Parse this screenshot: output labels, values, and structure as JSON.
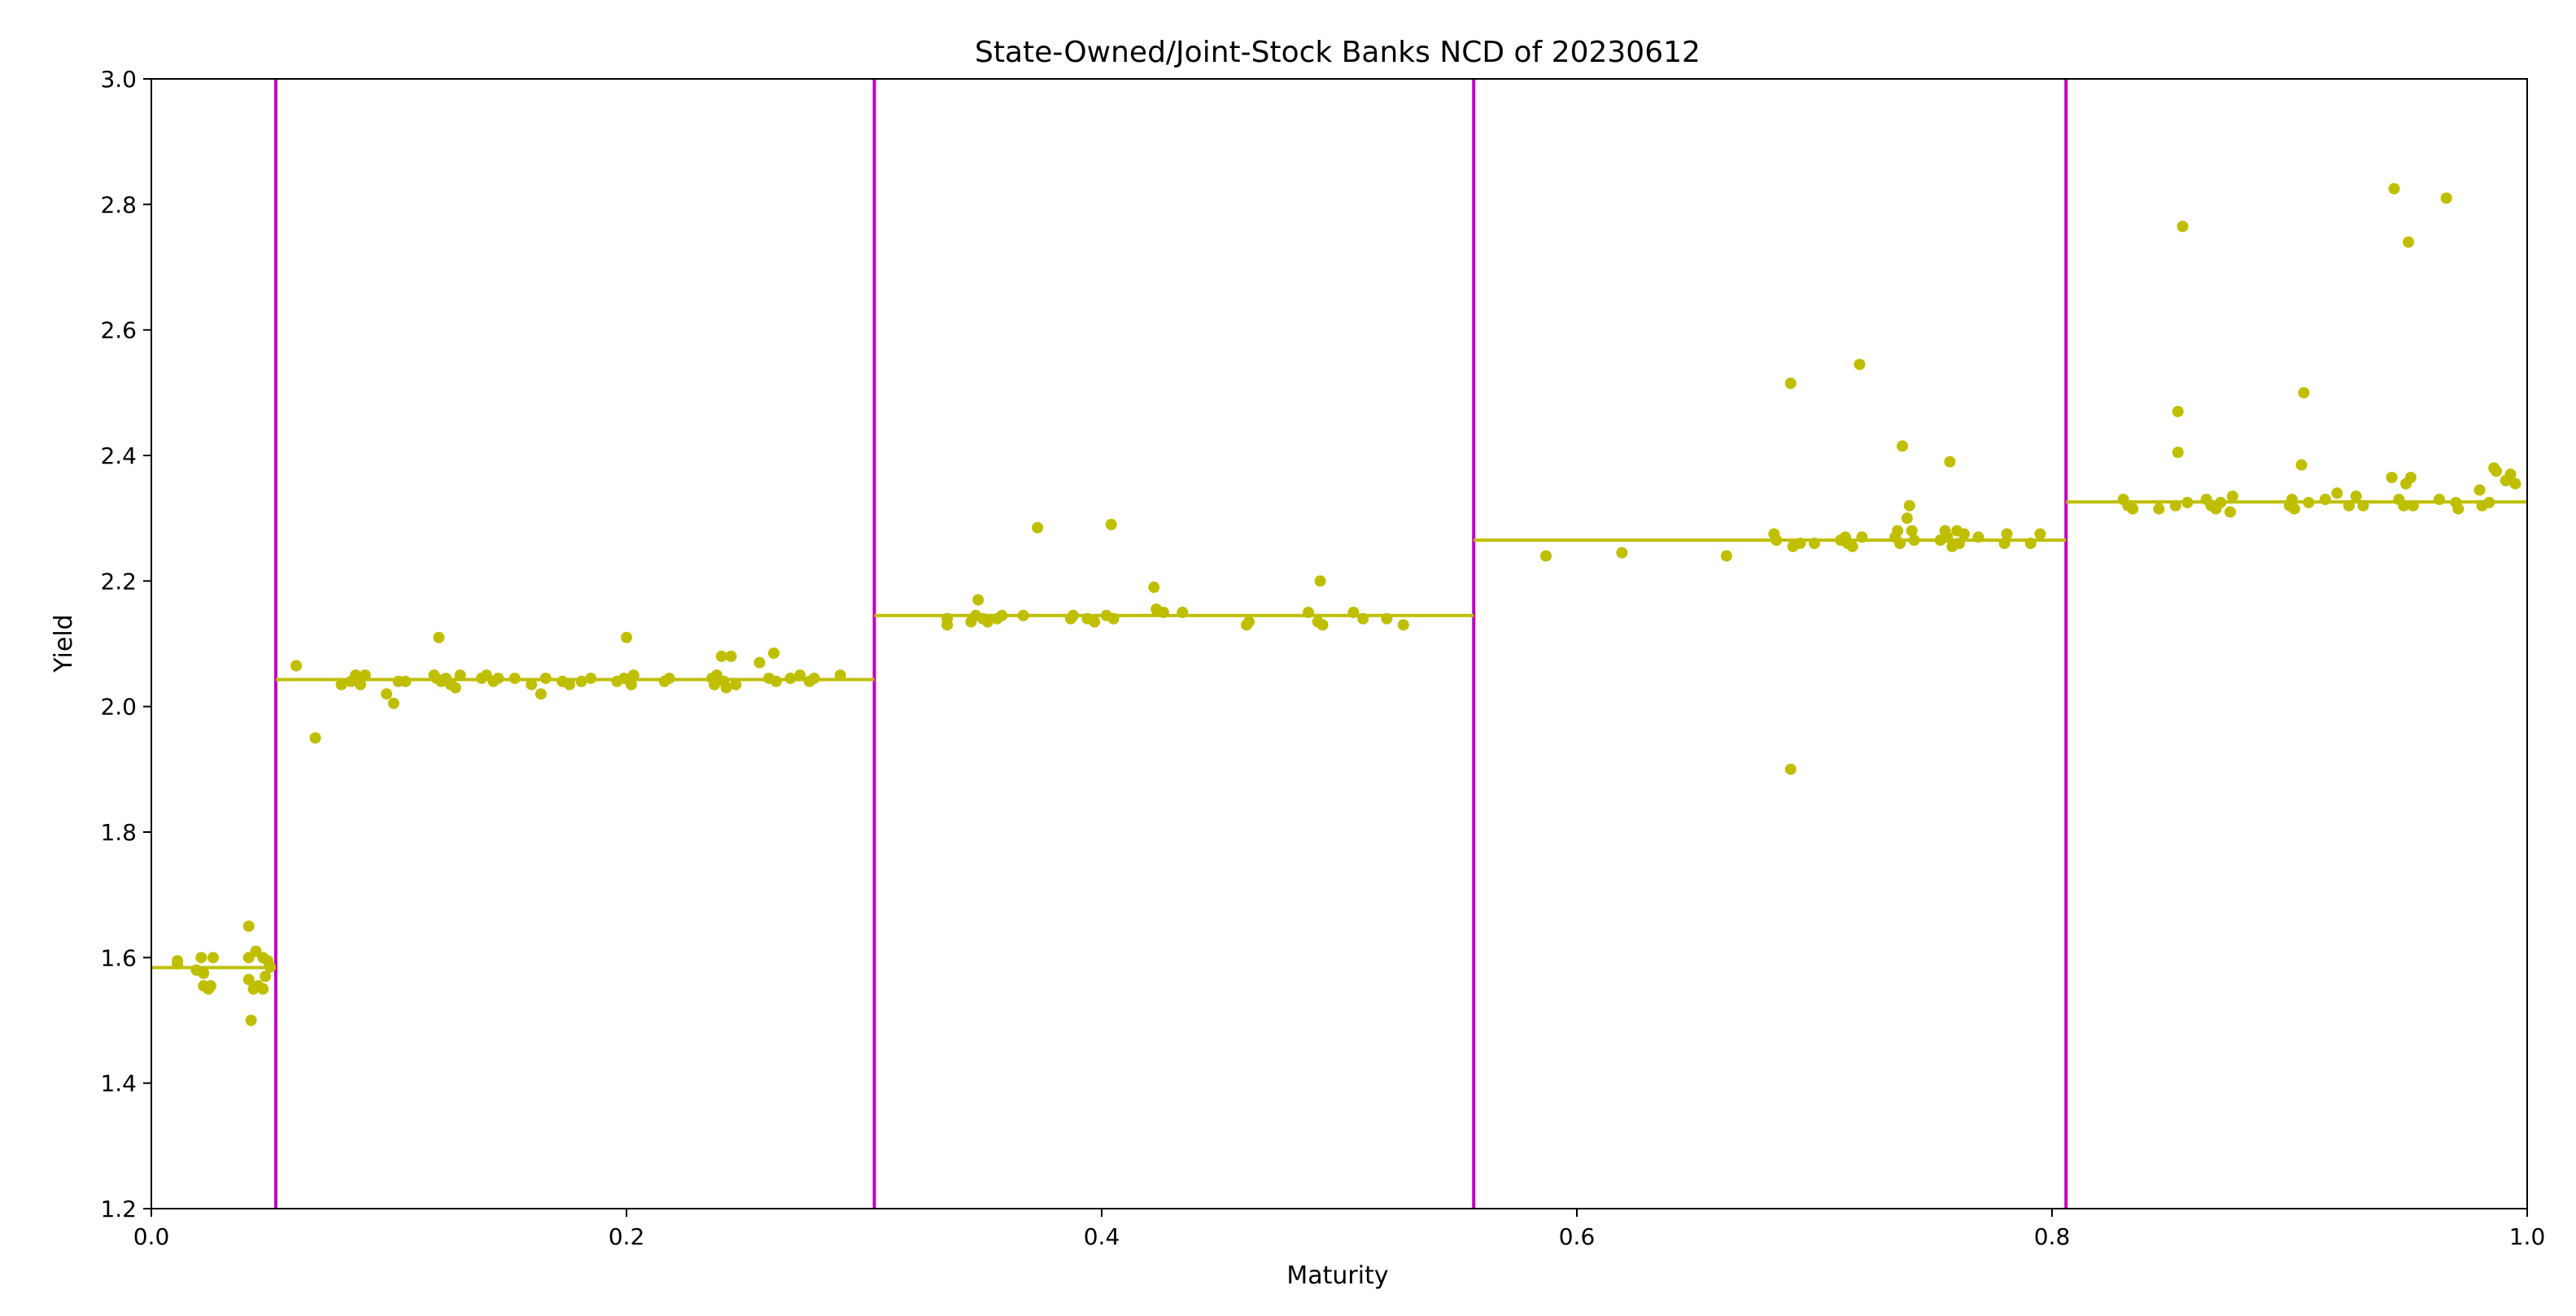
{
  "chart_data": {
    "type": "scatter",
    "title": "State-Owned/Joint-Stock Banks NCD of 20230612",
    "xlabel": "Maturity",
    "ylabel": "Yield",
    "xlim": [
      0.0,
      1.0
    ],
    "ylim": [
      1.2,
      3.0
    ],
    "xticks": [
      "0.0",
      "0.2",
      "0.4",
      "0.6",
      "0.8",
      "1.0"
    ],
    "yticks": [
      "1.2",
      "1.4",
      "1.6",
      "1.8",
      "2.0",
      "2.2",
      "2.4",
      "2.6",
      "2.8",
      "3.0"
    ],
    "grid": false,
    "point_color": "#bfbf00",
    "level_color": "#bfbf00",
    "divider_color": "#bf00bf",
    "segment_boundaries": [
      0.0,
      0.0524,
      0.3043,
      0.5566,
      0.8059,
      1.0
    ],
    "segment_levels": [
      1.584,
      2.043,
      2.145,
      2.265,
      2.326
    ],
    "points": [
      [
        0.011,
        1.59
      ],
      [
        0.011,
        1.595
      ],
      [
        0.019,
        1.58
      ],
      [
        0.021,
        1.6
      ],
      [
        0.022,
        1.575
      ],
      [
        0.022,
        1.555
      ],
      [
        0.024,
        1.55
      ],
      [
        0.025,
        1.555
      ],
      [
        0.026,
        1.6
      ],
      [
        0.041,
        1.65
      ],
      [
        0.041,
        1.6
      ],
      [
        0.041,
        1.565
      ],
      [
        0.042,
        1.5
      ],
      [
        0.043,
        1.55
      ],
      [
        0.044,
        1.61
      ],
      [
        0.045,
        1.555
      ],
      [
        0.047,
        1.6
      ],
      [
        0.047,
        1.55
      ],
      [
        0.048,
        1.57
      ],
      [
        0.049,
        1.595
      ],
      [
        0.05,
        1.585
      ],
      [
        0.061,
        2.065
      ],
      [
        0.069,
        1.95
      ],
      [
        0.08,
        2.035
      ],
      [
        0.084,
        2.04
      ],
      [
        0.086,
        2.05
      ],
      [
        0.088,
        2.035
      ],
      [
        0.09,
        2.05
      ],
      [
        0.099,
        2.02
      ],
      [
        0.102,
        2.005
      ],
      [
        0.104,
        2.04
      ],
      [
        0.107,
        2.04
      ],
      [
        0.119,
        2.05
      ],
      [
        0.12,
        2.045
      ],
      [
        0.121,
        2.11
      ],
      [
        0.122,
        2.04
      ],
      [
        0.124,
        2.045
      ],
      [
        0.126,
        2.035
      ],
      [
        0.128,
        2.03
      ],
      [
        0.13,
        2.05
      ],
      [
        0.139,
        2.045
      ],
      [
        0.141,
        2.05
      ],
      [
        0.144,
        2.04
      ],
      [
        0.146,
        2.045
      ],
      [
        0.153,
        2.045
      ],
      [
        0.16,
        2.035
      ],
      [
        0.164,
        2.02
      ],
      [
        0.166,
        2.045
      ],
      [
        0.173,
        2.04
      ],
      [
        0.176,
        2.035
      ],
      [
        0.181,
        2.04
      ],
      [
        0.185,
        2.045
      ],
      [
        0.196,
        2.04
      ],
      [
        0.199,
        2.045
      ],
      [
        0.2,
        2.11
      ],
      [
        0.202,
        2.035
      ],
      [
        0.203,
        2.05
      ],
      [
        0.216,
        2.04
      ],
      [
        0.218,
        2.045
      ],
      [
        0.236,
        2.045
      ],
      [
        0.237,
        2.035
      ],
      [
        0.238,
        2.05
      ],
      [
        0.24,
        2.08
      ],
      [
        0.241,
        2.04
      ],
      [
        0.242,
        2.03
      ],
      [
        0.244,
        2.08
      ],
      [
        0.246,
        2.035
      ],
      [
        0.256,
        2.07
      ],
      [
        0.26,
        2.045
      ],
      [
        0.262,
        2.085
      ],
      [
        0.263,
        2.04
      ],
      [
        0.269,
        2.045
      ],
      [
        0.273,
        2.05
      ],
      [
        0.277,
        2.04
      ],
      [
        0.279,
        2.045
      ],
      [
        0.29,
        2.05
      ],
      [
        0.335,
        2.13
      ],
      [
        0.335,
        2.14
      ],
      [
        0.345,
        2.135
      ],
      [
        0.347,
        2.145
      ],
      [
        0.348,
        2.17
      ],
      [
        0.35,
        2.14
      ],
      [
        0.352,
        2.135
      ],
      [
        0.356,
        2.14
      ],
      [
        0.358,
        2.145
      ],
      [
        0.367,
        2.145
      ],
      [
        0.373,
        2.285
      ],
      [
        0.387,
        2.14
      ],
      [
        0.388,
        2.145
      ],
      [
        0.394,
        2.14
      ],
      [
        0.397,
        2.135
      ],
      [
        0.402,
        2.145
      ],
      [
        0.404,
        2.29
      ],
      [
        0.405,
        2.14
      ],
      [
        0.422,
        2.19
      ],
      [
        0.423,
        2.155
      ],
      [
        0.426,
        2.15
      ],
      [
        0.434,
        2.15
      ],
      [
        0.461,
        2.13
      ],
      [
        0.462,
        2.135
      ],
      [
        0.487,
        2.15
      ],
      [
        0.491,
        2.135
      ],
      [
        0.492,
        2.2
      ],
      [
        0.493,
        2.13
      ],
      [
        0.506,
        2.15
      ],
      [
        0.51,
        2.14
      ],
      [
        0.52,
        2.14
      ],
      [
        0.527,
        2.13
      ],
      [
        0.587,
        2.24
      ],
      [
        0.619,
        2.245
      ],
      [
        0.663,
        2.24
      ],
      [
        0.683,
        2.275
      ],
      [
        0.684,
        2.265
      ],
      [
        0.69,
        2.515
      ],
      [
        0.69,
        1.9
      ],
      [
        0.691,
        2.255
      ],
      [
        0.694,
        2.26
      ],
      [
        0.7,
        2.26
      ],
      [
        0.711,
        2.265
      ],
      [
        0.713,
        2.27
      ],
      [
        0.714,
        2.26
      ],
      [
        0.716,
        2.255
      ],
      [
        0.719,
        2.545
      ],
      [
        0.72,
        2.27
      ],
      [
        0.734,
        2.27
      ],
      [
        0.735,
        2.28
      ],
      [
        0.736,
        2.26
      ],
      [
        0.737,
        2.415
      ],
      [
        0.739,
        2.3
      ],
      [
        0.74,
        2.32
      ],
      [
        0.741,
        2.28
      ],
      [
        0.742,
        2.265
      ],
      [
        0.753,
        2.265
      ],
      [
        0.755,
        2.28
      ],
      [
        0.756,
        2.27
      ],
      [
        0.757,
        2.39
      ],
      [
        0.758,
        2.255
      ],
      [
        0.76,
        2.28
      ],
      [
        0.761,
        2.26
      ],
      [
        0.763,
        2.275
      ],
      [
        0.769,
        2.27
      ],
      [
        0.78,
        2.26
      ],
      [
        0.781,
        2.275
      ],
      [
        0.791,
        2.26
      ],
      [
        0.795,
        2.275
      ],
      [
        0.83,
        2.33
      ],
      [
        0.832,
        2.32
      ],
      [
        0.834,
        2.315
      ],
      [
        0.845,
        2.315
      ],
      [
        0.852,
        2.32
      ],
      [
        0.853,
        2.405
      ],
      [
        0.853,
        2.47
      ],
      [
        0.855,
        2.765
      ],
      [
        0.857,
        2.325
      ],
      [
        0.865,
        2.33
      ],
      [
        0.867,
        2.32
      ],
      [
        0.869,
        2.315
      ],
      [
        0.871,
        2.325
      ],
      [
        0.875,
        2.31
      ],
      [
        0.876,
        2.335
      ],
      [
        0.9,
        2.32
      ],
      [
        0.901,
        2.33
      ],
      [
        0.902,
        2.315
      ],
      [
        0.905,
        2.385
      ],
      [
        0.906,
        2.5
      ],
      [
        0.908,
        2.325
      ],
      [
        0.915,
        2.33
      ],
      [
        0.92,
        2.34
      ],
      [
        0.925,
        2.32
      ],
      [
        0.928,
        2.335
      ],
      [
        0.931,
        2.32
      ],
      [
        0.943,
        2.365
      ],
      [
        0.944,
        2.825
      ],
      [
        0.946,
        2.33
      ],
      [
        0.948,
        2.32
      ],
      [
        0.949,
        2.355
      ],
      [
        0.95,
        2.74
      ],
      [
        0.951,
        2.365
      ],
      [
        0.952,
        2.32
      ],
      [
        0.963,
        2.33
      ],
      [
        0.966,
        2.81
      ],
      [
        0.97,
        2.325
      ],
      [
        0.971,
        2.315
      ],
      [
        0.98,
        2.345
      ],
      [
        0.981,
        2.32
      ],
      [
        0.984,
        2.325
      ],
      [
        0.986,
        2.38
      ],
      [
        0.987,
        2.375
      ],
      [
        0.991,
        2.36
      ],
      [
        0.993,
        2.37
      ],
      [
        0.995,
        2.355
      ]
    ]
  }
}
